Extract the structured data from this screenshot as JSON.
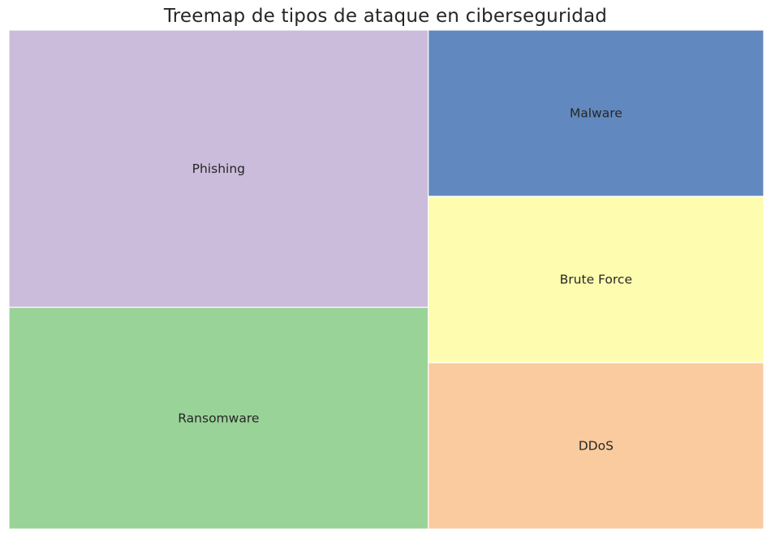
{
  "chart_data": {
    "type": "treemap",
    "title": "Treemap de tipos de ataque en ciberseguridad",
    "xlabel": "",
    "ylabel": "",
    "grid": false,
    "categories": [
      "Phishing",
      "Ransomware",
      "Malware",
      "Brute Force",
      "DDoS"
    ],
    "values": [
      25,
      20,
      12,
      12,
      12
    ],
    "colors": [
      "#cbbcdb",
      "#9ad398",
      "#6189bf",
      "#fefdaf",
      "#facb9f"
    ]
  }
}
